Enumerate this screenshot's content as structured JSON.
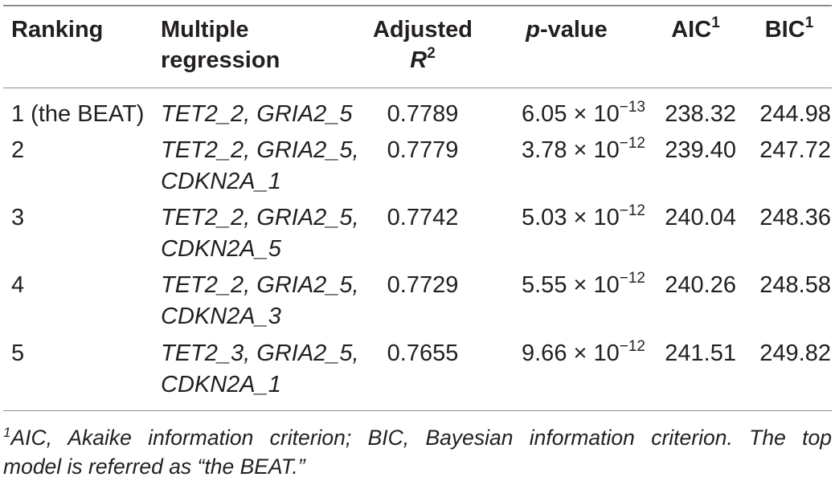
{
  "header": {
    "ranking": "Ranking",
    "model_line1": "Multiple",
    "model_line2": "regression",
    "r2_line1": "Adjusted",
    "r2_symbol": "R",
    "r2_exp": "2",
    "p_italic": "p",
    "p_rest": "-value",
    "aic": "AIC",
    "aic_sup": "1",
    "bic": "BIC",
    "bic_sup": "1"
  },
  "rows": [
    {
      "ranking": "1 (the BEAT)",
      "model_line1": "TET2_2, GRIA2_5",
      "model_line2": "",
      "r2": "0.7789",
      "p_mantissa": "6.05",
      "p_exponent": "−13",
      "aic": "238.32",
      "bic": "244.98"
    },
    {
      "ranking": "2",
      "model_line1": "TET2_2, GRIA2_5,",
      "model_line2": "CDKN2A_1",
      "r2": "0.7779",
      "p_mantissa": "3.78",
      "p_exponent": "−12",
      "aic": "239.40",
      "bic": "247.72"
    },
    {
      "ranking": "3",
      "model_line1": "TET2_2, GRIA2_5,",
      "model_line2": "CDKN2A_5",
      "r2": "0.7742",
      "p_mantissa": "5.03",
      "p_exponent": "−12",
      "aic": "240.04",
      "bic": "248.36"
    },
    {
      "ranking": "4",
      "model_line1": "TET2_2, GRIA2_5,",
      "model_line2": "CDKN2A_3",
      "r2": "0.7729",
      "p_mantissa": "5.55",
      "p_exponent": "−12",
      "aic": "240.26",
      "bic": "248.58"
    },
    {
      "ranking": "5",
      "model_line1": "TET2_3, GRIA2_5,",
      "model_line2": "CDKN2A_1",
      "r2": "0.7655",
      "p_mantissa": "9.66",
      "p_exponent": "−12",
      "aic": "241.51",
      "bic": "249.82"
    }
  ],
  "p_times_ten": "× 10",
  "footnote": {
    "marker": "1",
    "line1": "AIC, Akaike information criterion; BIC, Bayesian information criterion. The top",
    "line2": "model is referred as “the BEAT.”"
  }
}
